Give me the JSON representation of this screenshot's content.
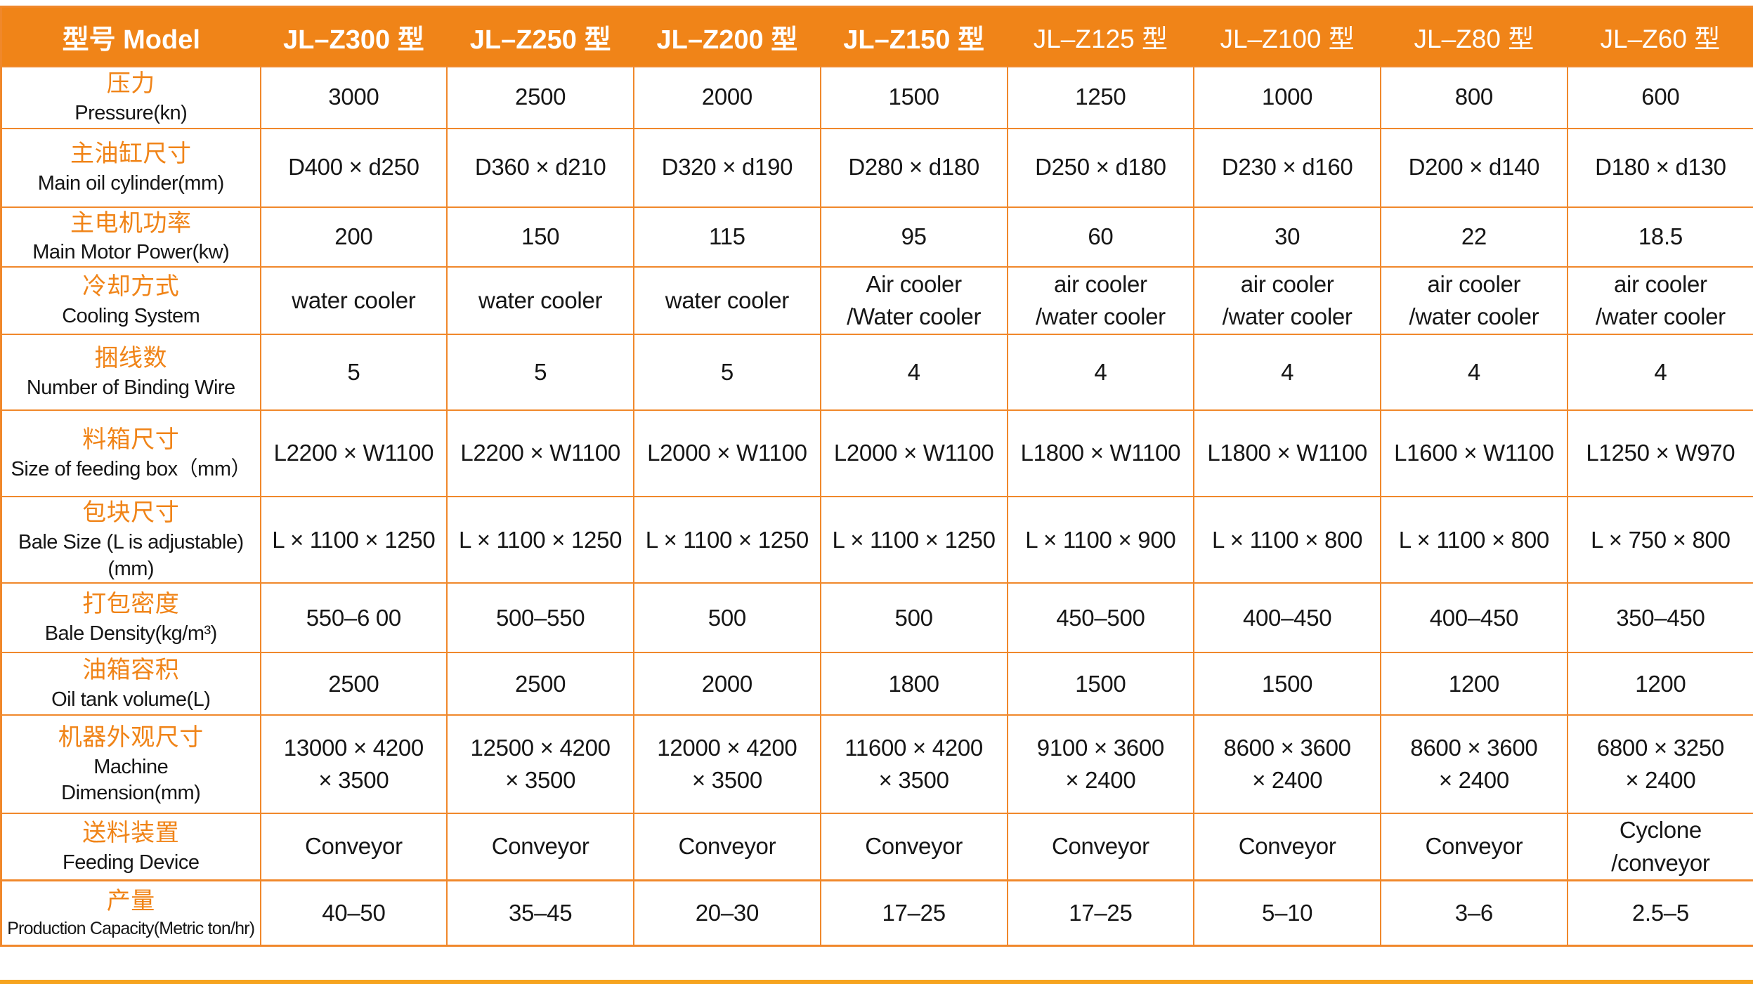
{
  "colors": {
    "header_bg": "#F08418",
    "grid_border": "#F0882B",
    "chinese_label": "#F08418",
    "body_text": "#161616",
    "header_text": "#FFFFFF",
    "bottom_bar": "#F6A41F"
  },
  "table": {
    "header": {
      "model_label": "型号 Model",
      "models": [
        "JL–Z300 型",
        "JL–Z250 型",
        "JL–Z200 型",
        "JL–Z150 型",
        "JL–Z125 型",
        "JL–Z100 型",
        "JL–Z80 型",
        "JL–Z60 型"
      ]
    },
    "rows": [
      {
        "id": "pressure",
        "label_zh": "压力",
        "label_en": "Pressure(kn)",
        "values": [
          "3000",
          "2500",
          "2000",
          "1500",
          "1250",
          "1000",
          "800",
          "600"
        ]
      },
      {
        "id": "main-oil-cylinder",
        "label_zh": "主油缸尺寸",
        "label_en": "Main oil cylinder(mm)",
        "values": [
          "D400 × d250",
          "D360 × d210",
          "D320 × d190",
          "D280 × d180",
          "D250 × d180",
          "D230 × d160",
          "D200 × d140",
          "D180 × d130"
        ]
      },
      {
        "id": "main-motor-power",
        "label_zh": "主电机功率",
        "label_en": "Main Motor Power(kw)",
        "values": [
          "200",
          "150",
          "115",
          "95",
          "60",
          "30",
          "22",
          "18.5"
        ]
      },
      {
        "id": "cooling-system",
        "label_zh": "冷却方式",
        "label_en": "Cooling System",
        "values": [
          "water cooler",
          "water cooler",
          "water cooler",
          "Air cooler\n/Water cooler",
          "air cooler\n/water cooler",
          "air cooler\n/water cooler",
          "air cooler\n/water cooler",
          "air cooler\n/water cooler"
        ]
      },
      {
        "id": "binding-wire",
        "label_zh": "捆线数",
        "label_en": "Number of Binding Wire",
        "values": [
          "5",
          "5",
          "5",
          "4",
          "4",
          "4",
          "4",
          "4"
        ]
      },
      {
        "id": "feeding-box-size",
        "label_zh": "料箱尺寸",
        "label_en": "Size of feeding box（mm）",
        "values": [
          "L2200 × W1100",
          "L2200 × W1100",
          "L2000 × W1100",
          "L2000 × W1100",
          "L1800 × W1100",
          "L1800 × W1100",
          "L1600 × W1100",
          "L1250 × W970"
        ]
      },
      {
        "id": "bale-size",
        "label_zh": "包块尺寸",
        "label_en": "Bale Size (L is adjustable) (mm)",
        "values": [
          "L × 1100 × 1250",
          "L × 1100 × 1250",
          "L × 1100 × 1250",
          "L × 1100 × 1250",
          "L × 1100 × 900",
          "L × 1100 × 800",
          "L × 1100 × 800",
          "L × 750 × 800"
        ]
      },
      {
        "id": "bale-density",
        "label_zh": "打包密度",
        "label_en": "Bale Density(kg/m³)",
        "values": [
          "550–6 00",
          "500–550",
          "500",
          "500",
          "450–500",
          "400–450",
          "400–450",
          "350–450"
        ]
      },
      {
        "id": "oil-tank-volume",
        "label_zh": "油箱容积",
        "label_en": "Oil tank volume(L)",
        "values": [
          "2500",
          "2500",
          "2000",
          "1800",
          "1500",
          "1500",
          "1200",
          "1200"
        ]
      },
      {
        "id": "machine-dimension",
        "label_zh": "机器外观尺寸",
        "label_en": "Machine\nDimension(mm)",
        "values": [
          "13000 × 4200\n× 3500",
          "12500 × 4200\n× 3500",
          "12000 × 4200\n× 3500",
          "11600 × 4200\n× 3500",
          "9100 × 3600\n× 2400",
          "8600 × 3600\n× 2400",
          "8600 × 3600\n× 2400",
          "6800 × 3250\n× 2400"
        ]
      },
      {
        "id": "feeding-device",
        "label_zh": "送料装置",
        "label_en": "Feeding Device",
        "values": [
          "Conveyor",
          "Conveyor",
          "Conveyor",
          "Conveyor",
          "Conveyor",
          "Conveyor",
          "Conveyor",
          "Cyclone\n/conveyor"
        ]
      },
      {
        "id": "production-capacity",
        "label_zh": "产量",
        "label_en": "Production Capacity(Metric ton/hr)",
        "values": [
          "40–50",
          "35–45",
          "20–30",
          "17–25",
          "17–25",
          "5–10",
          "3–6",
          "2.5–5"
        ]
      }
    ]
  }
}
